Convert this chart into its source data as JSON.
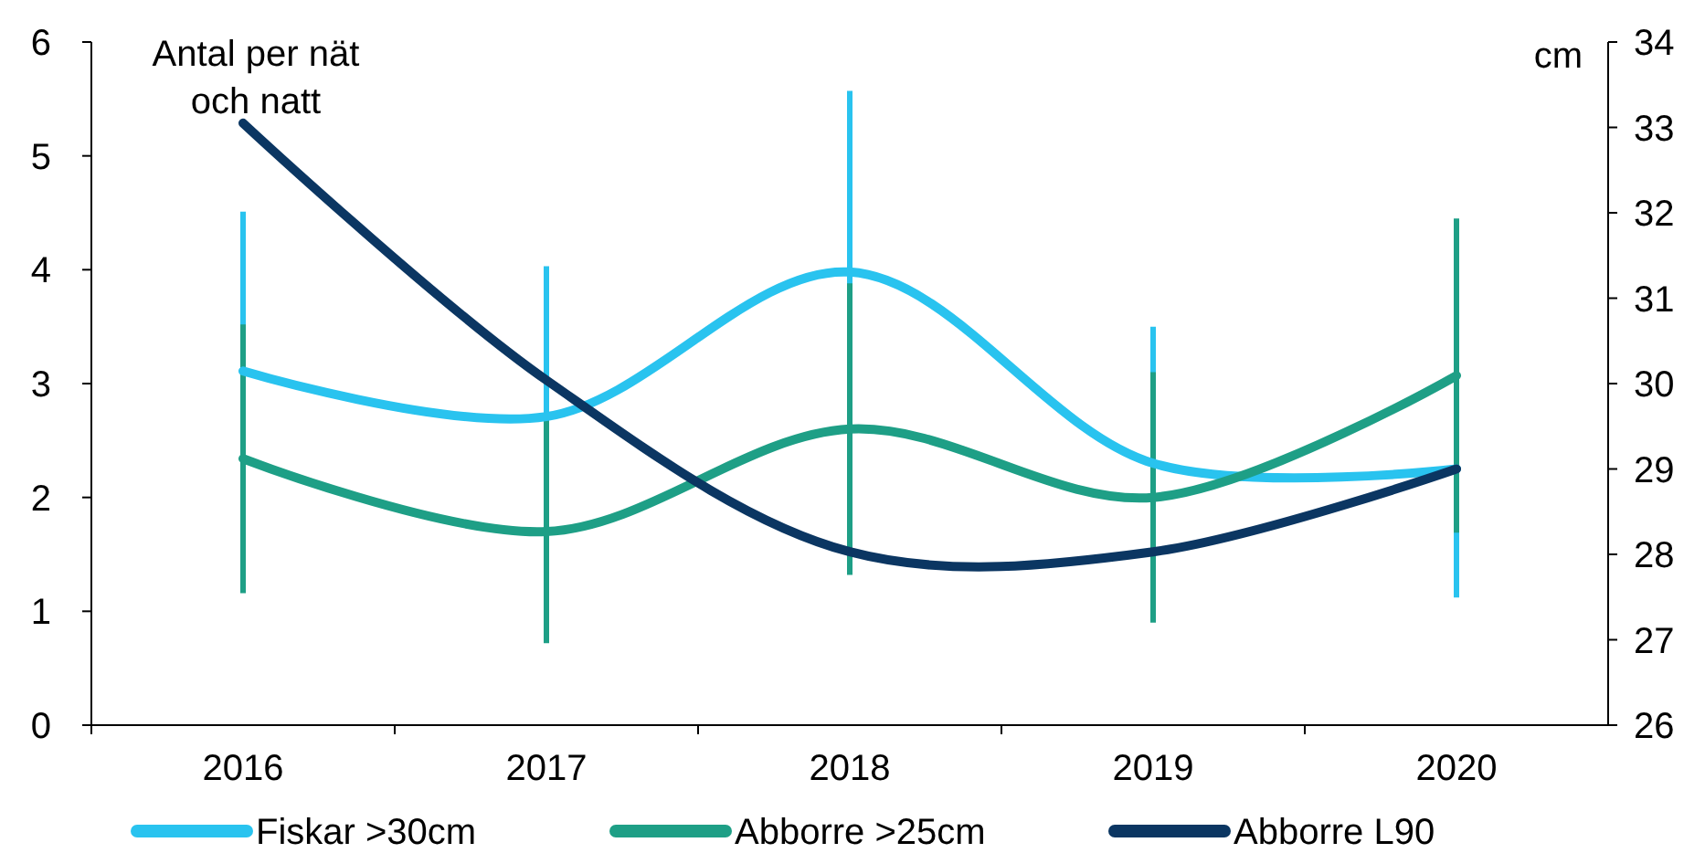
{
  "chart_data": {
    "type": "line",
    "ylabel": "Antal per nät och natt",
    "y2label": "cm",
    "categories": [
      "2016",
      "2017",
      "2018",
      "2019",
      "2020"
    ],
    "series": [
      {
        "name": "Fiskar >30cm",
        "color": "#29c3ef",
        "values": [
          3.11,
          2.71,
          3.98,
          2.3,
          2.25
        ],
        "errors": [
          1.4,
          1.32,
          1.59,
          1.2,
          1.13
        ]
      },
      {
        "name": "Abborre >25cm",
        "color": "#1e9f86",
        "values": [
          2.34,
          1.7,
          2.6,
          2.0,
          3.07
        ],
        "errors": [
          1.18,
          0.98,
          1.28,
          1.1,
          1.38
        ]
      },
      {
        "name": "Abborre L90",
        "color": "#0b3662",
        "axis": "y2",
        "values": [
          33.05,
          30.04,
          28.03,
          28.03,
          29.0
        ]
      }
    ],
    "ylim": [
      0,
      6
    ],
    "yticks": [
      0,
      1,
      2,
      3,
      4,
      5,
      6
    ],
    "y2lim": [
      26,
      34
    ],
    "y2ticks": [
      26,
      27,
      28,
      29,
      30,
      31,
      32,
      33,
      34
    ],
    "grid": false,
    "legend": "bottom",
    "marker": "none",
    "line_style": "solid"
  }
}
